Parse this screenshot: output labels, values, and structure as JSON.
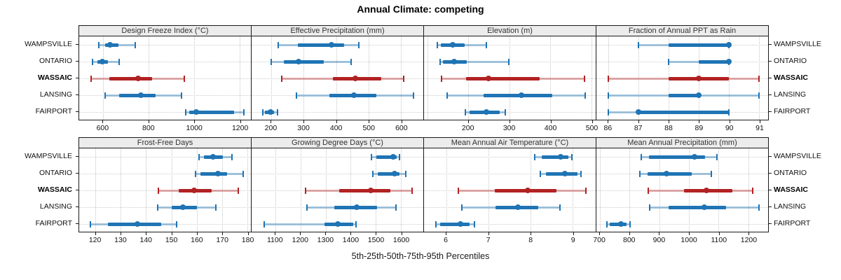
{
  "title": "Annual Climate: competing",
  "caption": "5th-25th-50th-75th-95th Percentiles",
  "series_labels": [
    "WAMPSVILLE",
    "ONTARIO",
    "WASSAIC",
    "LANSING",
    "FAIRPORT"
  ],
  "highlight_label": "WASSAIC",
  "colors": {
    "competitor": "#1F74B4",
    "competitor_light": "rgba(31,116,180,0.40)",
    "highlight": "#B22222",
    "highlight_light": "rgba(178,34,34,0.38)",
    "strip_bg": "#ECECEC",
    "border": "#1A1A1A",
    "grid": "#C4C4C4"
  },
  "chart_data": [
    {
      "type": "interval",
      "title": "Design Freeze Index (°C)",
      "percentile_labels": [
        "5th",
        "25th",
        "50th",
        "75th",
        "95th"
      ],
      "xlim": [
        495,
        1250
      ],
      "ticks": [
        600,
        800,
        1000,
        1200
      ],
      "series": [
        {
          "name": "WAMPSVILLE",
          "values": [
            580,
            610,
            632,
            668,
            740
          ]
        },
        {
          "name": "ONTARIO",
          "values": [
            553,
            575,
            596,
            621,
            671
          ]
        },
        {
          "name": "WASSAIC",
          "values": [
            546,
            626,
            755,
            815,
            958
          ]
        },
        {
          "name": "LANSING",
          "values": [
            610,
            670,
            765,
            830,
            945
          ]
        },
        {
          "name": "FAIRPORT",
          "values": [
            963,
            978,
            1010,
            1175,
            1218
          ]
        }
      ]
    },
    {
      "type": "interval",
      "title": "Effective Precipitation (mm)",
      "percentile_labels": [
        "5th",
        "25th",
        "50th",
        "75th",
        "95th"
      ],
      "xlim": [
        139,
        669
      ],
      "ticks": [
        200,
        300,
        400,
        500,
        600
      ],
      "series": [
        {
          "name": "WAMPSVILLE",
          "values": [
            221,
            282,
            385,
            424,
            470
          ]
        },
        {
          "name": "ONTARIO",
          "values": [
            200,
            238,
            283,
            362,
            447
          ]
        },
        {
          "name": "WASSAIC",
          "values": [
            231,
            390,
            459,
            540,
            609
          ]
        },
        {
          "name": "LANSING",
          "values": [
            277,
            379,
            455,
            525,
            638
          ]
        },
        {
          "name": "FAIRPORT",
          "values": [
            173,
            181,
            198,
            209,
            220
          ]
        }
      ]
    },
    {
      "type": "interval",
      "title": "Elevation (m)",
      "percentile_labels": [
        "5th",
        "25th",
        "50th",
        "75th",
        "95th"
      ],
      "xlim": [
        92,
        511
      ],
      "ticks": [
        200,
        300,
        400,
        500
      ],
      "grid_only": [
        100
      ],
      "series": [
        {
          "name": "WAMPSVILLE",
          "values": [
            124,
            133,
            162,
            192,
            245
          ]
        },
        {
          "name": "ONTARIO",
          "values": [
            131,
            139,
            166,
            197,
            299
          ]
        },
        {
          "name": "WASSAIC",
          "values": [
            134,
            194,
            250,
            374,
            484
          ]
        },
        {
          "name": "LANSING",
          "values": [
            149,
            237,
            329,
            405,
            485
          ]
        },
        {
          "name": "FAIRPORT",
          "values": [
            193,
            203,
            244,
            276,
            290
          ]
        }
      ]
    },
    {
      "type": "interval",
      "title": "Fraction of Annual PPT as Rain",
      "percentile_labels": [
        "5th",
        "25th",
        "50th",
        "75th",
        "95th"
      ],
      "xlim": [
        85.6,
        91.3
      ],
      "ticks": [
        86,
        87,
        88,
        89,
        90,
        91
      ],
      "series": [
        {
          "name": "WAMPSVILLE",
          "values": [
            87,
            88,
            90,
            90,
            90
          ]
        },
        {
          "name": "ONTARIO",
          "values": [
            88,
            89,
            90,
            90,
            90
          ]
        },
        {
          "name": "WASSAIC",
          "values": [
            86,
            88,
            89,
            90,
            91
          ]
        },
        {
          "name": "LANSING",
          "values": [
            86,
            88,
            89,
            89,
            91
          ]
        },
        {
          "name": "FAIRPORT",
          "values": [
            86,
            87,
            87,
            90,
            90
          ]
        }
      ]
    },
    {
      "type": "interval",
      "title": "Frost-Free Days",
      "percentile_labels": [
        "5th",
        "25th",
        "50th",
        "75th",
        "95th"
      ],
      "xlim": [
        113.5,
        181.5
      ],
      "ticks": [
        120,
        130,
        140,
        150,
        160,
        170,
        180
      ],
      "series": [
        {
          "name": "WAMPSVILLE",
          "values": [
            161,
            163,
            166.5,
            170.5,
            174
          ]
        },
        {
          "name": "ONTARIO",
          "values": [
            159.5,
            161.5,
            168.5,
            172,
            178.5
          ]
        },
        {
          "name": "WASSAIC",
          "values": [
            145,
            153,
            159,
            166,
            176.5
          ]
        },
        {
          "name": "LANSING",
          "values": [
            144.5,
            150,
            154.5,
            160,
            167.5
          ]
        },
        {
          "name": "FAIRPORT",
          "values": [
            118,
            125,
            136.5,
            146,
            152
          ]
        }
      ]
    },
    {
      "type": "interval",
      "title": "Growing Degree Days (°C)",
      "percentile_labels": [
        "5th",
        "25th",
        "50th",
        "75th",
        "95th"
      ],
      "xlim": [
        1005,
        1690
      ],
      "ticks": [
        1100,
        1200,
        1300,
        1400,
        1500,
        1600
      ],
      "series": [
        {
          "name": "WAMPSVILLE",
          "values": [
            1483,
            1503,
            1570,
            1585,
            1595
          ]
        },
        {
          "name": "ONTARIO",
          "values": [
            1488,
            1508,
            1575,
            1595,
            1620
          ]
        },
        {
          "name": "WASSAIC",
          "values": [
            1221,
            1355,
            1480,
            1560,
            1645
          ]
        },
        {
          "name": "LANSING",
          "values": [
            1225,
            1335,
            1425,
            1505,
            1580
          ]
        },
        {
          "name": "FAIRPORT",
          "values": [
            1055,
            1295,
            1350,
            1410,
            1422
          ]
        }
      ]
    },
    {
      "type": "interval",
      "title": "Mean Annual Air Temperature (°C)",
      "percentile_labels": [
        "5th",
        "25th",
        "50th",
        "75th",
        "95th"
      ],
      "xlim": [
        5.47,
        9.55
      ],
      "ticks": [
        6,
        7,
        8,
        9
      ],
      "series": [
        {
          "name": "WAMPSVILLE",
          "values": [
            8.1,
            8.26,
            8.72,
            8.9,
            8.98
          ]
        },
        {
          "name": "ONTARIO",
          "values": [
            8.23,
            8.37,
            8.82,
            9.12,
            9.2
          ]
        },
        {
          "name": "WASSAIC",
          "values": [
            6.29,
            7.15,
            7.94,
            8.61,
            9.31
          ]
        },
        {
          "name": "LANSING",
          "values": [
            6.37,
            7.17,
            7.7,
            8.18,
            8.7
          ]
        },
        {
          "name": "FAIRPORT",
          "values": [
            5.76,
            5.86,
            6.34,
            6.55,
            6.67
          ]
        }
      ]
    },
    {
      "type": "interval",
      "title": "Mean Annual Precipitation (mm)",
      "percentile_labels": [
        "5th",
        "25th",
        "50th",
        "75th",
        "95th"
      ],
      "xlim": [
        688,
        1267
      ],
      "ticks": [
        700,
        800,
        900,
        1000,
        1100,
        1200
      ],
      "series": [
        {
          "name": "WAMPSVILLE",
          "values": [
            840,
            865,
            1020,
            1055,
            1095
          ]
        },
        {
          "name": "ONTARIO",
          "values": [
            835,
            860,
            924,
            1010,
            1075
          ]
        },
        {
          "name": "WASSAIC",
          "values": [
            863,
            983,
            1060,
            1146,
            1215
          ]
        },
        {
          "name": "LANSING",
          "values": [
            868,
            932,
            1053,
            1126,
            1236
          ]
        },
        {
          "name": "FAIRPORT",
          "values": [
            723,
            733,
            771,
            789,
            801
          ]
        }
      ]
    }
  ]
}
